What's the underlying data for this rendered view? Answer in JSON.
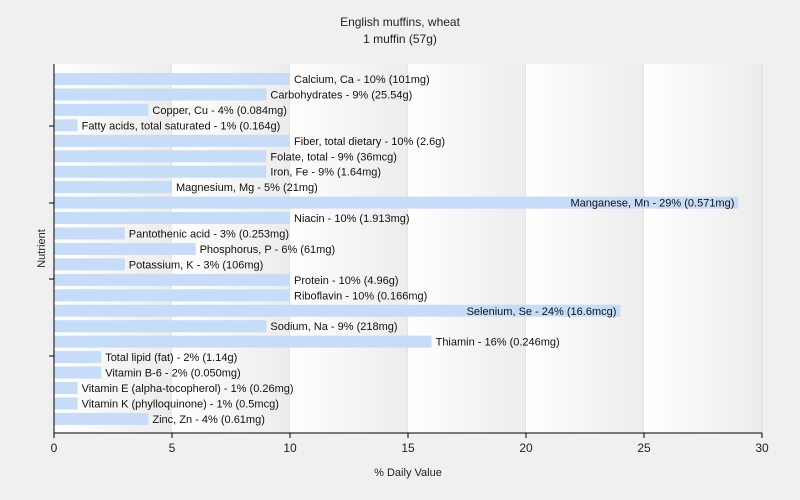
{
  "chart_data": {
    "type": "bar",
    "orientation": "horizontal",
    "title": "English muffins, wheat",
    "subtitle": "1 muffin (57g)",
    "xlabel": "% Daily Value",
    "ylabel": "Nutrient",
    "xlim": [
      0,
      30
    ],
    "xticks": [
      0,
      5,
      10,
      15,
      20,
      25,
      30
    ],
    "bar_color": "#c6dcf8",
    "grid": "vertical bands",
    "categories": [
      "Calcium, Ca",
      "Carbohydrates",
      "Copper, Cu",
      "Fatty acids, total saturated",
      "Fiber, total dietary",
      "Folate, total",
      "Iron, Fe",
      "Magnesium, Mg",
      "Manganese, Mn",
      "Niacin",
      "Pantothenic acid",
      "Phosphorus, P",
      "Potassium, K",
      "Protein",
      "Riboflavin",
      "Selenium, Se",
      "Sodium, Na",
      "Thiamin",
      "Total lipid (fat)",
      "Vitamin B-6",
      "Vitamin E (alpha-tocopherol)",
      "Vitamin K (phylloquinone)",
      "Zinc, Zn"
    ],
    "values": [
      10,
      9,
      4,
      1,
      10,
      9,
      9,
      5,
      29,
      10,
      3,
      6,
      3,
      10,
      10,
      24,
      9,
      16,
      2,
      2,
      1,
      1,
      4
    ],
    "labels": [
      "Calcium, Ca - 10% (101mg)",
      "Carbohydrates - 9% (25.54g)",
      "Copper, Cu - 4% (0.084mg)",
      "Fatty acids, total saturated - 1% (0.164g)",
      "Fiber, total dietary - 10% (2.6g)",
      "Folate, total - 9% (36mcg)",
      "Iron, Fe - 9% (1.64mg)",
      "Magnesium, Mg - 5% (21mg)",
      "Manganese, Mn - 29% (0.571mg)",
      "Niacin - 10% (1.913mg)",
      "Pantothenic acid - 3% (0.253mg)",
      "Phosphorus, P - 6% (61mg)",
      "Potassium, K - 3% (106mg)",
      "Protein - 10% (4.96g)",
      "Riboflavin - 10% (0.166mg)",
      "Selenium, Se - 24% (16.6mcg)",
      "Sodium, Na - 9% (218mg)",
      "Thiamin - 16% (0.246mg)",
      "Total lipid (fat) - 2% (1.14g)",
      "Vitamin B-6 - 2% (0.050mg)",
      "Vitamin E (alpha-tocopherol) - 1% (0.26mg)",
      "Vitamin K (phylloquinone) - 1% (0.5mcg)",
      "Zinc, Zn - 4% (0.61mg)"
    ]
  }
}
